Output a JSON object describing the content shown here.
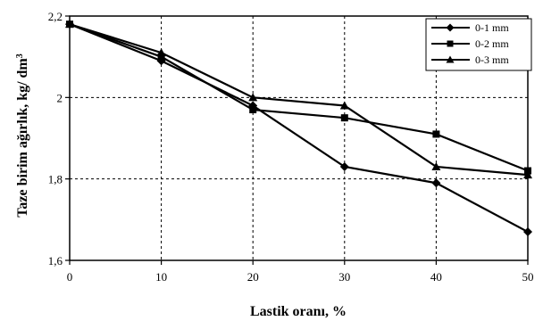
{
  "chart_data": {
    "type": "line",
    "title": "",
    "xlabel": "Lastik oranı, %",
    "ylabel": "Taze birim ağırlık, kg/ dm",
    "ylabel_superscript": "3",
    "x": [
      0,
      10,
      20,
      30,
      40,
      50
    ],
    "x_ticks": [
      "0",
      "10",
      "20",
      "30",
      "40",
      "50"
    ],
    "y_ticks": [
      "1,6",
      "1,8",
      "2",
      "2,2"
    ],
    "xlim": [
      0,
      50
    ],
    "ylim": [
      1.6,
      2.2
    ],
    "grid": "dashed",
    "legend_position": "top-right",
    "series": [
      {
        "name": "0-1 mm",
        "marker": "diamond",
        "values": [
          2.18,
          2.09,
          1.98,
          1.83,
          1.79,
          1.67
        ]
      },
      {
        "name": "0-2 mm",
        "marker": "square",
        "values": [
          2.18,
          2.1,
          1.97,
          1.95,
          1.91,
          1.82
        ]
      },
      {
        "name": "0-3 mm",
        "marker": "triangle",
        "values": [
          2.18,
          2.11,
          2.0,
          1.98,
          1.83,
          1.81
        ]
      }
    ],
    "colors": {
      "line": "#000000",
      "grid": "#000000",
      "background": "#ffffff"
    }
  }
}
